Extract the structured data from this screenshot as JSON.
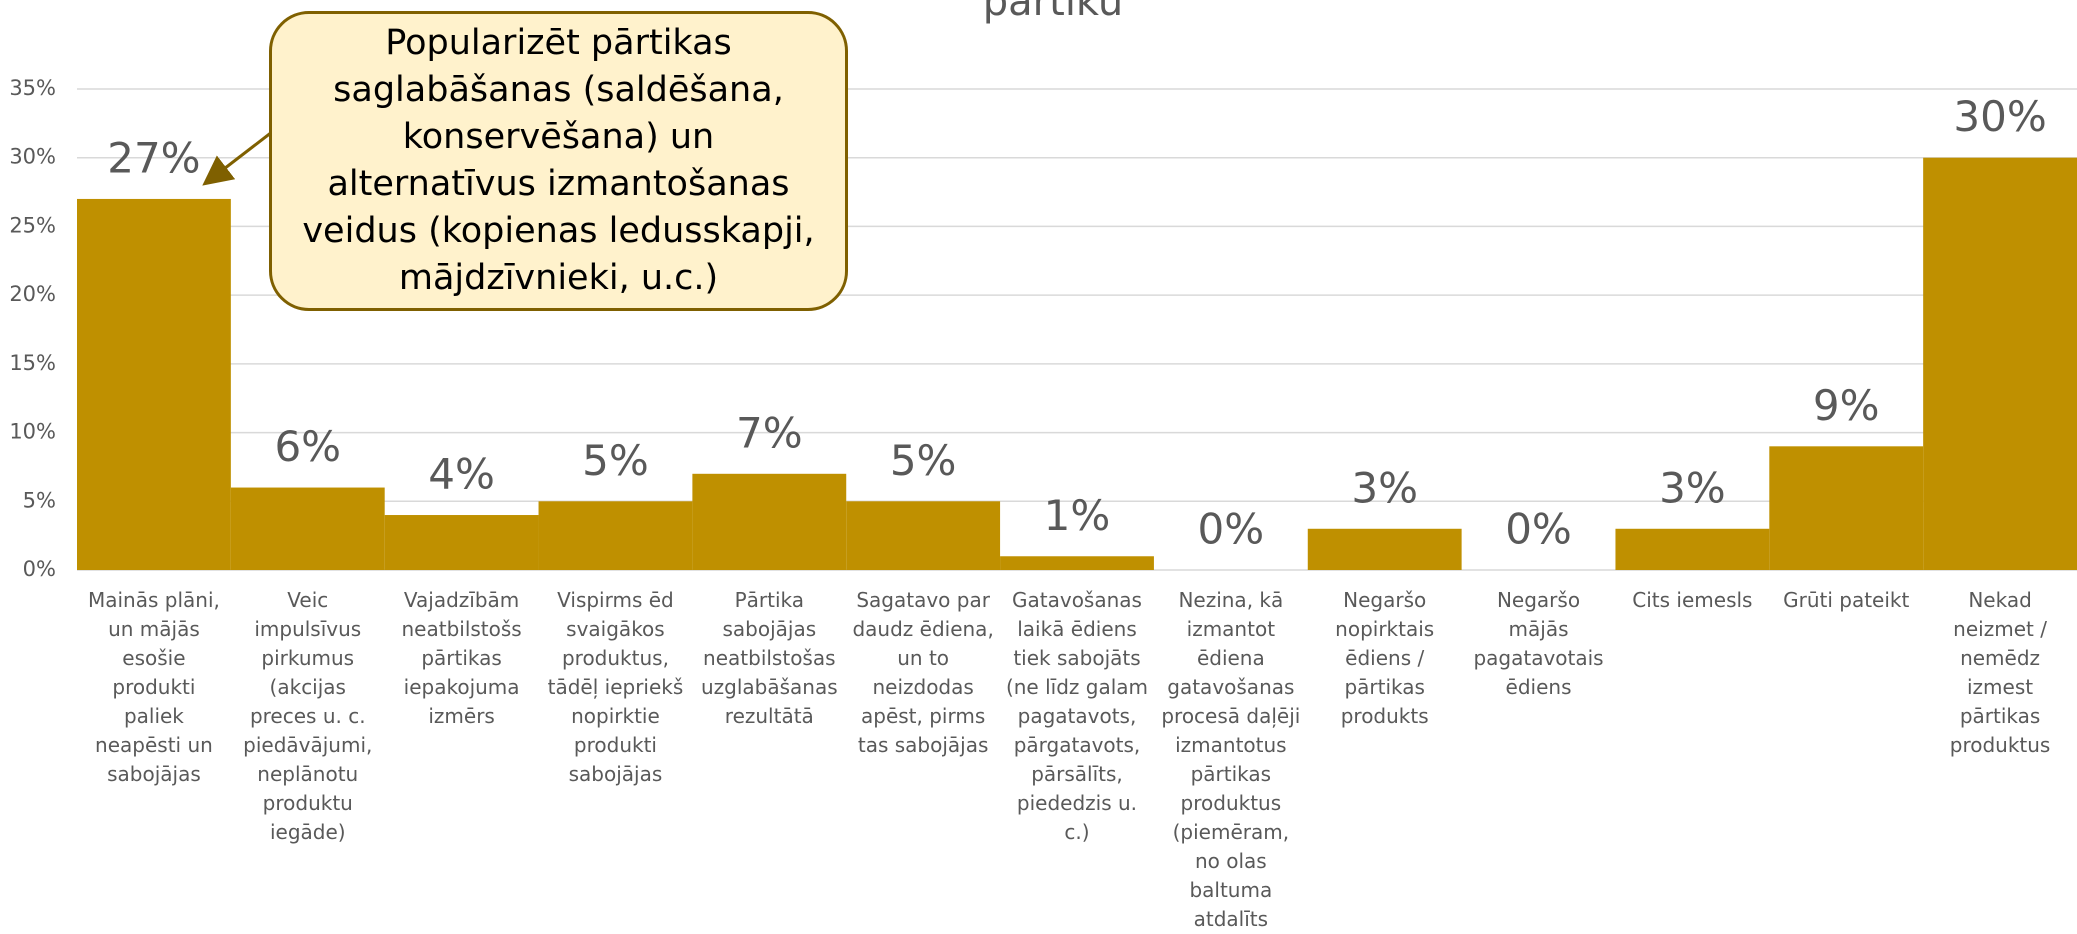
{
  "chart_data": {
    "type": "bar",
    "title": "pārtiku",
    "annotation": "Popularizēt pārtikas saglabāšanas (saldēšana, konservēšana) un alternatīvus izmantošanas veidus (kopienas ledusskapji, mājdzīvnieki, u.c.)",
    "categories": [
      "Mainās plāni, un mājās esošie produkti paliek neapēsti un sabojājas",
      "Veic impulsīvus pirkumus (akcijas preces u. c. piedāvājumi, neplānotu produktu iegāde)",
      "Vajadzībām neatbilstošs pārtikas iepakojuma izmērs",
      "Vispirms ēd svaigākos produktus, tādēļ iepriekš nopirktie produkti sabojājas",
      "Pārtika sabojājas neatbilstošas uzglabāšanas rezultātā",
      "Sagatavo par daudz ēdiena, un to neizdodas apēst, pirms tas sabojājas",
      "Gatavošanas laikā ēdiens tiek sabojāts (ne līdz galam pagatavots, pārgatavots, pārsālīts, piededzis u. c.)",
      "Nezina, kā izmantot ēdiena gatavošanas procesā daļēji izmantotus pārtikas produktus (piemēram, no olas baltuma atdalīts",
      "Negaršo nopirktais ēdiens / pārtikas produkts",
      "Negaršo mājās pagatavotais ēdiens",
      "Cits iemesls",
      "Grūti pateikt",
      "Nekad neizmet / nemēdz izmest pārtikas produktus"
    ],
    "values": [
      27,
      6,
      4,
      5,
      7,
      5,
      1,
      0,
      3,
      0,
      3,
      9,
      30
    ],
    "value_labels": [
      "27%",
      "6%",
      "4%",
      "5%",
      "7%",
      "5%",
      "1%",
      "0%",
      "3%",
      "0%",
      "3%",
      "9%",
      "30%"
    ],
    "color": "#bf9000",
    "ylim": [
      0,
      35
    ],
    "yticks": [
      {
        "value": 0,
        "label": "0%"
      },
      {
        "value": 5,
        "label": "5%"
      },
      {
        "value": 10,
        "label": "10%"
      },
      {
        "value": 15,
        "label": "15%"
      },
      {
        "value": 20,
        "label": "20%"
      },
      {
        "value": 25,
        "label": "25%"
      },
      {
        "value": 30,
        "label": "30%"
      },
      {
        "value": 35,
        "label": "35%"
      }
    ],
    "grid": true
  }
}
